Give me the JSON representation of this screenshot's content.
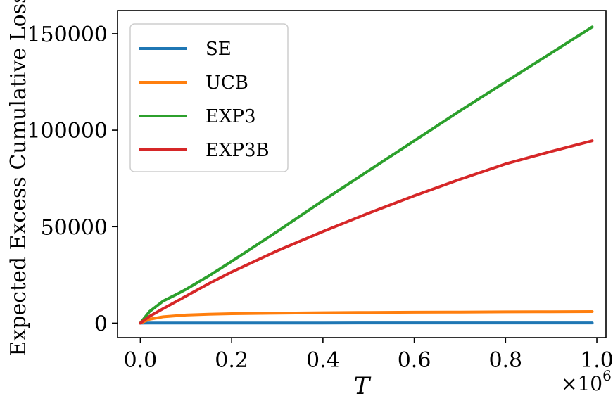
{
  "chart_data": {
    "type": "line",
    "xlabel": "T",
    "ylabel": "Expected Excess Cumulative Loss",
    "x_multiplier_label": "×10",
    "x_multiplier_exponent": "6",
    "xlim": [
      -0.05,
      1.02
    ],
    "ylim": [
      -7500,
      162000
    ],
    "x_ticks": [
      0.0,
      0.2,
      0.4,
      0.6,
      0.8,
      1.0
    ],
    "x_tick_labels": [
      "0.0",
      "0.2",
      "0.4",
      "0.6",
      "0.8",
      "1.0"
    ],
    "y_ticks": [
      0,
      50000,
      100000,
      150000
    ],
    "y_tick_labels": [
      "0",
      "50000",
      "100000",
      "150000"
    ],
    "grid": false,
    "legend_position": "top-left",
    "series": [
      {
        "name": "SE",
        "color": "#1f77b4",
        "x": [
          0.0,
          0.02,
          0.1,
          0.2,
          0.4,
          0.6,
          0.8,
          0.99
        ],
        "y": [
          0,
          60,
          80,
          90,
          100,
          110,
          115,
          120
        ]
      },
      {
        "name": "UCB",
        "color": "#ff7f0e",
        "x": [
          0.0,
          0.02,
          0.05,
          0.1,
          0.15,
          0.2,
          0.3,
          0.4,
          0.5,
          0.6,
          0.7,
          0.8,
          0.9,
          0.99
        ],
        "y": [
          0,
          2000,
          3300,
          4200,
          4600,
          4900,
          5200,
          5400,
          5550,
          5650,
          5750,
          5850,
          5920,
          6000
        ]
      },
      {
        "name": "EXP3",
        "color": "#2ca02c",
        "x": [
          0.0,
          0.02,
          0.05,
          0.08,
          0.1,
          0.15,
          0.2,
          0.3,
          0.4,
          0.5,
          0.6,
          0.7,
          0.8,
          0.9,
          0.99
        ],
        "y": [
          0,
          6000,
          11500,
          15000,
          17500,
          24500,
          32000,
          47500,
          63500,
          79000,
          94500,
          110000,
          125000,
          140000,
          153500
        ]
      },
      {
        "name": "EXP3B",
        "color": "#d62728",
        "x": [
          0.0,
          0.02,
          0.05,
          0.1,
          0.15,
          0.2,
          0.3,
          0.4,
          0.5,
          0.6,
          0.7,
          0.8,
          0.9,
          0.99
        ],
        "y": [
          0,
          3500,
          7500,
          14000,
          20500,
          26500,
          37500,
          47500,
          57000,
          66000,
          74500,
          82500,
          89000,
          94500
        ]
      }
    ]
  }
}
